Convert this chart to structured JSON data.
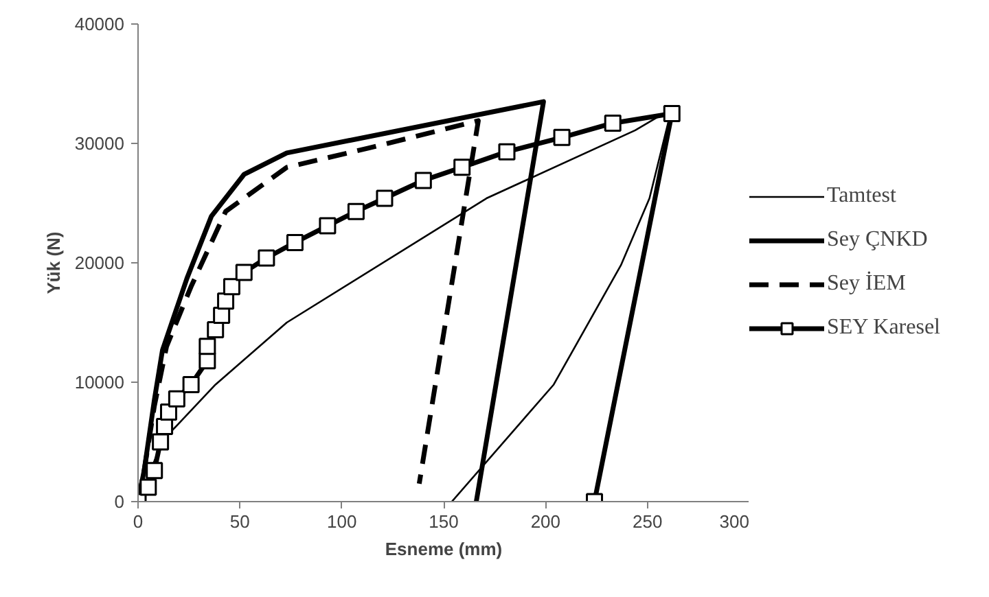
{
  "chart_data": {
    "type": "line",
    "xlabel": "Esneme (mm)",
    "ylabel": "Yük (N)",
    "xlim": [
      0,
      300
    ],
    "ylim": [
      0,
      40000
    ],
    "xticks": [
      0,
      50,
      100,
      150,
      200,
      250,
      300
    ],
    "yticks": [
      0,
      10000,
      20000,
      30000,
      40000
    ],
    "grid": false,
    "legend": "right",
    "series": [
      {
        "name": "Tamtest",
        "color": "#000000",
        "line_style": "solid",
        "marker": "none",
        "x": [
          0,
          12,
          38,
          73,
          171,
          244,
          256,
          262,
          251,
          237,
          204,
          154
        ],
        "values": [
          0,
          5100,
          9800,
          15000,
          25400,
          31100,
          32300,
          33000,
          25400,
          19800,
          9800,
          0
        ]
      },
      {
        "name": "Sey ÇNKD",
        "color": "#000000",
        "line_style": "solid",
        "marker": "none",
        "x": [
          0,
          3,
          8,
          12,
          24,
          36,
          52,
          73,
          199,
          166
        ],
        "values": [
          0,
          2600,
          8500,
          12700,
          18700,
          23900,
          27400,
          29200,
          33500,
          0
        ]
      },
      {
        "name": "Sey İEM",
        "color": "#000000",
        "line_style": "dashed",
        "marker": "none",
        "x": [
          0,
          3,
          8,
          14,
          26,
          43,
          73,
          113,
          167,
          138
        ],
        "values": [
          0,
          2600,
          8000,
          13000,
          18000,
          24300,
          28000,
          29600,
          31900,
          1500
        ]
      },
      {
        "name": "SEY Karesel",
        "color": "#000000",
        "line_style": "solid",
        "marker": "square",
        "x": [
          0,
          5,
          8,
          11,
          13,
          15,
          19,
          26,
          34,
          34,
          38,
          41,
          43,
          46,
          52,
          63,
          77,
          93,
          107,
          121,
          140,
          159,
          181,
          208,
          233,
          262,
          224
        ],
        "values": [
          0,
          1200,
          2600,
          5000,
          6300,
          7500,
          8600,
          9800,
          11800,
          13000,
          14400,
          15600,
          16800,
          18000,
          19200,
          20400,
          21700,
          23100,
          24300,
          25400,
          26900,
          28000,
          29300,
          30500,
          31700,
          32500,
          0
        ]
      }
    ]
  }
}
